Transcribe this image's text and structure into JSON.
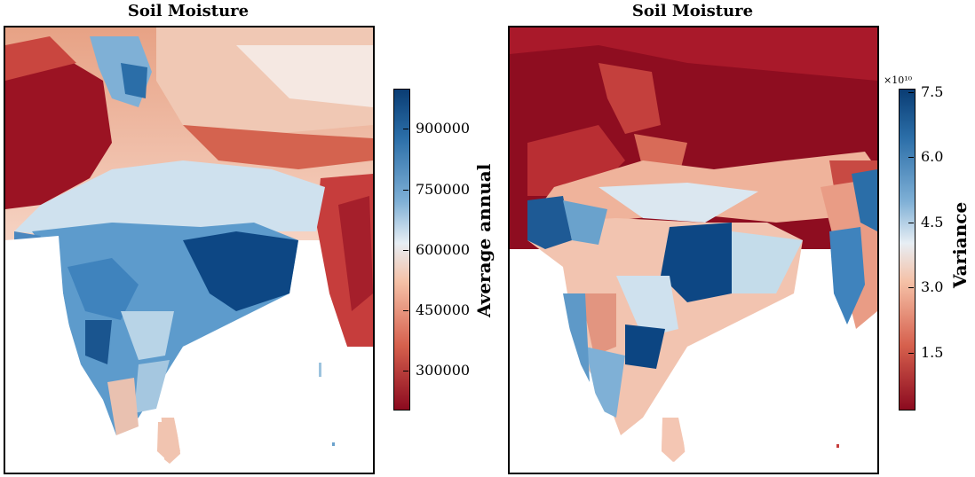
{
  "left_panel": {
    "title": "Soil Moisture",
    "colorbar": {
      "label": "Average annual",
      "ticks": [
        "900000",
        "750000",
        "600000",
        "450000",
        "300000"
      ],
      "range": [
        220000,
        1000000
      ],
      "colormap": "RdBu"
    }
  },
  "right_panel": {
    "title": "Soil Moisture",
    "colorbar": {
      "label": "Variance",
      "multiplier": "×10¹⁰",
      "ticks": [
        "7.5",
        "6.0",
        "4.5",
        "3.0",
        "1.5"
      ],
      "range": [
        0.2,
        7.6
      ],
      "colormap": "RdBu"
    }
  },
  "colors": {
    "dark_red": "#8b0a1f",
    "red": "#cf4b45",
    "salmon": "#f3b49a",
    "white": "#f6f6f6",
    "light_blue": "#a9cfe5",
    "blue": "#3f83bd",
    "dark_blue": "#0a3d74"
  }
}
